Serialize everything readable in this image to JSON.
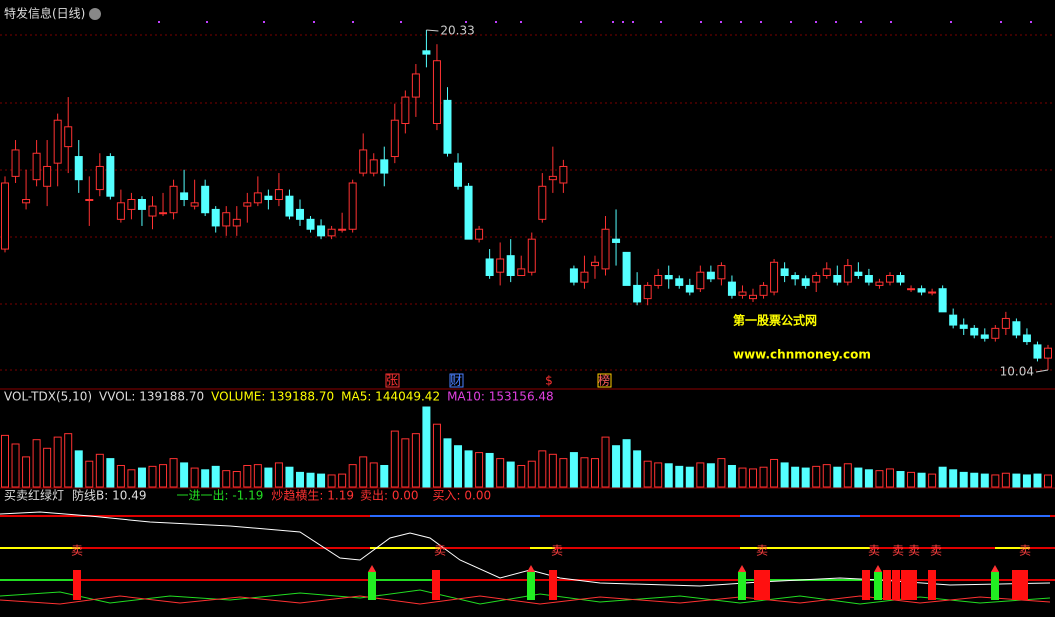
{
  "chart_data": {
    "type": "candlestick",
    "title": "特发信息(日线)",
    "high_label": 20.33,
    "low_label": 10.04,
    "watermark": [
      "第一股票公式网",
      "www.chnmoney.com"
    ],
    "event_marks": [
      "张",
      "财",
      "$",
      "榜"
    ],
    "up_color": "#ff3232",
    "down_color": "#54ffff",
    "ohlc": [
      [
        13.7,
        15.9,
        13.6,
        15.7
      ],
      [
        15.9,
        17.0,
        15.7,
        16.7
      ],
      [
        15.1,
        16.1,
        14.9,
        15.2
      ],
      [
        15.8,
        17.0,
        15.6,
        16.6
      ],
      [
        15.6,
        17.0,
        15.0,
        16.2
      ],
      [
        16.3,
        17.8,
        15.6,
        17.6
      ],
      [
        16.8,
        18.3,
        16.0,
        17.4
      ],
      [
        16.5,
        17.0,
        15.4,
        15.8
      ],
      [
        15.2,
        15.9,
        14.4,
        15.2
      ],
      [
        15.5,
        16.6,
        15.3,
        16.2
      ],
      [
        16.5,
        16.6,
        15.2,
        15.3
      ],
      [
        14.6,
        15.5,
        14.5,
        15.1
      ],
      [
        14.9,
        15.4,
        14.6,
        15.2
      ],
      [
        15.2,
        15.3,
        14.4,
        14.9
      ],
      [
        14.7,
        15.3,
        14.3,
        15.0
      ],
      [
        14.8,
        15.4,
        14.7,
        14.8
      ],
      [
        14.8,
        15.8,
        14.6,
        15.6
      ],
      [
        15.4,
        16.1,
        15.0,
        15.2
      ],
      [
        15.0,
        15.8,
        14.9,
        15.1
      ],
      [
        15.6,
        15.8,
        14.7,
        14.8
      ],
      [
        14.9,
        15.0,
        14.2,
        14.4
      ],
      [
        14.4,
        15.0,
        14.1,
        14.8
      ],
      [
        14.4,
        15.0,
        14.1,
        14.6
      ],
      [
        15.0,
        15.4,
        14.5,
        15.1
      ],
      [
        15.1,
        15.9,
        15.0,
        15.4
      ],
      [
        15.3,
        15.5,
        14.9,
        15.2
      ],
      [
        15.2,
        16.0,
        15.0,
        15.5
      ],
      [
        15.3,
        15.5,
        14.6,
        14.7
      ],
      [
        14.9,
        15.2,
        14.4,
        14.6
      ],
      [
        14.6,
        14.7,
        14.2,
        14.3
      ],
      [
        14.4,
        14.6,
        14.0,
        14.1
      ],
      [
        14.1,
        14.4,
        14.0,
        14.3
      ],
      [
        14.3,
        14.8,
        14.2,
        14.3
      ],
      [
        14.3,
        15.8,
        14.2,
        15.7
      ],
      [
        16.0,
        17.2,
        15.9,
        16.7
      ],
      [
        16.0,
        16.6,
        15.9,
        16.4
      ],
      [
        16.4,
        16.8,
        15.6,
        16.0
      ],
      [
        16.5,
        18.1,
        16.3,
        17.6
      ],
      [
        17.5,
        18.5,
        17.2,
        18.3
      ],
      [
        18.3,
        19.3,
        17.7,
        19.0
      ],
      [
        19.7,
        20.33,
        19.2,
        19.6
      ],
      [
        17.5,
        19.9,
        17.3,
        19.4
      ],
      [
        18.2,
        18.6,
        16.5,
        16.6
      ],
      [
        16.3,
        16.6,
        15.5,
        15.6
      ],
      [
        15.6,
        15.7,
        14.0,
        14.0
      ],
      [
        14.0,
        14.4,
        13.9,
        14.3
      ],
      [
        13.4,
        13.7,
        12.8,
        12.9
      ],
      [
        13.0,
        13.9,
        12.6,
        13.4
      ],
      [
        13.5,
        14.0,
        12.7,
        12.9
      ],
      [
        12.9,
        13.5,
        12.9,
        13.1
      ],
      [
        13.0,
        14.2,
        12.9,
        14.0
      ],
      [
        14.6,
        16.0,
        14.5,
        15.6
      ],
      [
        15.8,
        16.8,
        15.4,
        15.9
      ],
      [
        15.7,
        16.4,
        15.4,
        16.2
      ],
      [
        13.1,
        13.2,
        12.6,
        12.7
      ],
      [
        12.7,
        13.5,
        12.5,
        13.0
      ],
      [
        13.2,
        13.5,
        12.8,
        13.3
      ],
      [
        13.1,
        14.7,
        12.9,
        14.3
      ],
      [
        14.0,
        14.9,
        13.2,
        13.9
      ],
      [
        13.6,
        13.6,
        12.6,
        12.6
      ],
      [
        12.6,
        13.0,
        12.0,
        12.1
      ],
      [
        12.2,
        12.7,
        12.0,
        12.6
      ],
      [
        12.6,
        13.1,
        12.5,
        12.9
      ],
      [
        12.9,
        13.2,
        12.5,
        12.8
      ],
      [
        12.8,
        12.9,
        12.5,
        12.6
      ],
      [
        12.6,
        12.8,
        12.3,
        12.4
      ],
      [
        12.5,
        13.2,
        12.4,
        13.0
      ],
      [
        13.0,
        13.2,
        12.7,
        12.8
      ],
      [
        12.8,
        13.3,
        12.6,
        13.2
      ],
      [
        12.7,
        12.9,
        12.2,
        12.3
      ],
      [
        12.3,
        12.6,
        12.2,
        12.4
      ],
      [
        12.2,
        12.5,
        12.1,
        12.3
      ],
      [
        12.3,
        12.7,
        12.2,
        12.6
      ],
      [
        12.4,
        13.4,
        12.3,
        13.3
      ],
      [
        13.1,
        13.3,
        12.7,
        12.9
      ],
      [
        12.9,
        13.0,
        12.6,
        12.8
      ],
      [
        12.8,
        12.9,
        12.5,
        12.6
      ],
      [
        12.7,
        13.0,
        12.4,
        12.9
      ],
      [
        12.9,
        13.3,
        12.8,
        13.1
      ],
      [
        12.9,
        13.2,
        12.6,
        12.7
      ],
      [
        12.7,
        13.4,
        12.6,
        13.2
      ],
      [
        13.0,
        13.3,
        12.8,
        12.9
      ],
      [
        12.9,
        13.1,
        12.6,
        12.7
      ],
      [
        12.6,
        12.8,
        12.5,
        12.7
      ],
      [
        12.7,
        13.0,
        12.6,
        12.9
      ],
      [
        12.9,
        13.0,
        12.6,
        12.7
      ],
      [
        12.5,
        12.6,
        12.4,
        12.5
      ],
      [
        12.5,
        12.6,
        12.3,
        12.4
      ],
      [
        12.4,
        12.5,
        12.3,
        12.4
      ],
      [
        12.5,
        12.6,
        11.8,
        11.8
      ],
      [
        11.7,
        11.9,
        11.3,
        11.4
      ],
      [
        11.4,
        11.6,
        11.1,
        11.3
      ],
      [
        11.3,
        11.4,
        11.0,
        11.1
      ],
      [
        11.1,
        11.3,
        10.9,
        11.0
      ],
      [
        11.0,
        11.4,
        10.9,
        11.3
      ],
      [
        11.3,
        11.8,
        11.1,
        11.6
      ],
      [
        11.5,
        11.6,
        11.0,
        11.1
      ],
      [
        11.1,
        11.3,
        10.8,
        10.9
      ],
      [
        10.8,
        10.9,
        10.3,
        10.4
      ],
      [
        10.4,
        10.8,
        10.04,
        10.7
      ]
    ],
    "volume": {
      "header": [
        "VOL-TDX(5,10)",
        "VVOL: 139188.70",
        "VOLUME: 139188.70",
        "MA5: 144049.42",
        "MA10: 153156.48"
      ],
      "values": [
        600000,
        500000,
        350000,
        550000,
        450000,
        580000,
        620000,
        420000,
        300000,
        380000,
        330000,
        250000,
        200000,
        220000,
        240000,
        260000,
        330000,
        280000,
        220000,
        200000,
        240000,
        190000,
        180000,
        250000,
        260000,
        220000,
        280000,
        230000,
        170000,
        160000,
        150000,
        140000,
        150000,
        260000,
        350000,
        280000,
        250000,
        650000,
        560000,
        620000,
        930000,
        730000,
        560000,
        480000,
        420000,
        400000,
        390000,
        330000,
        290000,
        250000,
        300000,
        420000,
        380000,
        330000,
        400000,
        340000,
        330000,
        580000,
        480000,
        550000,
        420000,
        300000,
        280000,
        270000,
        240000,
        230000,
        280000,
        270000,
        330000,
        250000,
        220000,
        210000,
        230000,
        320000,
        280000,
        230000,
        220000,
        240000,
        260000,
        230000,
        270000,
        220000,
        200000,
        190000,
        210000,
        180000,
        170000,
        160000,
        150000,
        230000,
        200000,
        170000,
        160000,
        150000,
        140000,
        160000,
        150000,
        140000,
        150000,
        139188.7
      ]
    },
    "indicator": {
      "header": [
        "买卖红绿灯",
        "防线B: 10.49",
        "一进一出: -1.19",
        "炒趋横生: 1.19",
        "卖出: 0.00",
        "买入: 0.00"
      ],
      "sell_mark": "卖"
    }
  }
}
